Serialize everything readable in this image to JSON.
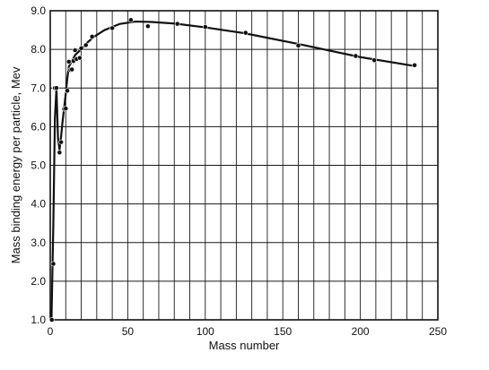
{
  "chart_data": {
    "type": "scatter",
    "title": "",
    "xlabel": "Mass number",
    "ylabel": "Mass binding energy per particle, Mev",
    "xlim": [
      0,
      250
    ],
    "ylim": [
      1.0,
      9.0
    ],
    "x_ticks": [
      0,
      50,
      100,
      150,
      200,
      250
    ],
    "x_tick_labels": [
      "0",
      "50",
      "100",
      "150",
      "200",
      "250"
    ],
    "y_ticks": [
      1.0,
      2.0,
      3.0,
      4.0,
      5.0,
      6.0,
      7.0,
      8.0,
      9.0
    ],
    "y_tick_labels": [
      "1.0",
      "2.0",
      "3.0",
      "4.0",
      "5.0",
      "6.0",
      "7.0",
      "8.0",
      "9.0"
    ],
    "grid": true,
    "x_grid_step": 10,
    "y_grid_step": 1.0,
    "legend": "none",
    "series": [
      {
        "name": "",
        "style": "points",
        "x": [
          1,
          2,
          3,
          4,
          6,
          7,
          9,
          10,
          11,
          12,
          13,
          14,
          15,
          16,
          17,
          19,
          20,
          23,
          27,
          40,
          52,
          63,
          82,
          100,
          126,
          160,
          197,
          209,
          235
        ],
        "y": [
          1.0,
          2.45,
          7.0,
          7.0,
          5.33,
          5.6,
          6.46,
          6.47,
          6.93,
          7.68,
          7.47,
          7.48,
          7.7,
          7.98,
          7.75,
          7.78,
          8.03,
          8.11,
          8.33,
          8.55,
          8.76,
          8.6,
          8.66,
          8.58,
          8.43,
          8.1,
          7.83,
          7.72,
          7.59
        ]
      },
      {
        "name": "",
        "style": "line",
        "x": [
          0.8,
          2,
          3,
          4,
          5,
          6,
          7,
          8,
          9,
          10,
          11,
          12,
          14,
          16,
          18,
          20,
          24,
          28,
          35,
          45,
          55,
          65,
          80,
          100,
          125,
          160,
          200,
          235
        ],
        "y": [
          1.0,
          3.5,
          6.2,
          7.0,
          5.7,
          5.4,
          5.75,
          6.15,
          6.5,
          6.85,
          7.25,
          7.55,
          7.7,
          7.85,
          7.93,
          8.0,
          8.18,
          8.32,
          8.5,
          8.66,
          8.72,
          8.71,
          8.67,
          8.57,
          8.42,
          8.14,
          7.8,
          7.57
        ]
      }
    ]
  }
}
